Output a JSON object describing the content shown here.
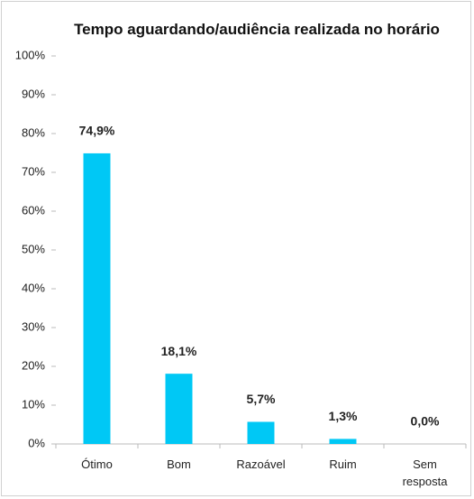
{
  "chart_data": {
    "type": "bar",
    "title": "Tempo aguardando/audiência  realizada no horário",
    "categories": [
      "Ótimo",
      "Bom",
      "Razoável",
      "Ruim",
      "Sem resposta"
    ],
    "values": [
      74.9,
      18.1,
      5.7,
      1.3,
      0.0
    ],
    "value_labels": [
      "74,9%",
      "18,1%",
      "5,7%",
      "1,3%",
      "0,0%"
    ],
    "color": "#00c8f5",
    "ylim": [
      0,
      100
    ],
    "yticks": [
      {
        "value": 0,
        "label": "0%"
      },
      {
        "value": 10,
        "label": "10%"
      },
      {
        "value": 20,
        "label": "20%"
      },
      {
        "value": 30,
        "label": "30%"
      },
      {
        "value": 40,
        "label": "40%"
      },
      {
        "value": 50,
        "label": "50%"
      },
      {
        "value": 60,
        "label": "60%"
      },
      {
        "value": 70,
        "label": "70%"
      },
      {
        "value": 80,
        "label": "80%"
      },
      {
        "value": 90,
        "label": "90%"
      },
      {
        "value": 100,
        "label": "100%"
      }
    ],
    "grid": false
  }
}
